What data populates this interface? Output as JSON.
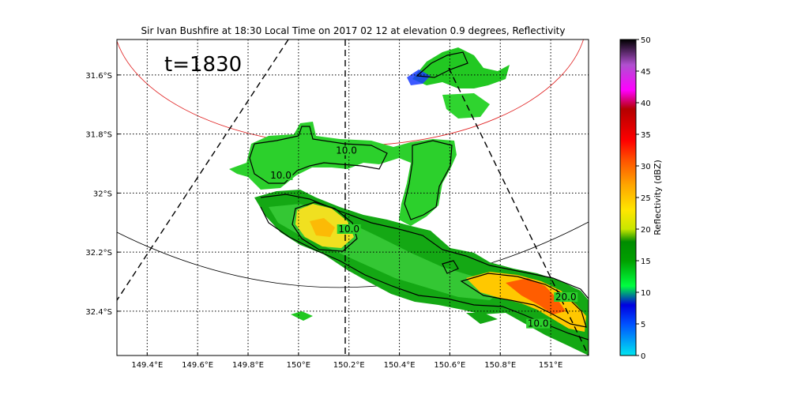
{
  "title": "Sir Ivan Bushfire at 18:30 Local Time on 2017 02 12 at elevation 0.9 degrees, Reflectivity",
  "time_label": "t=1830",
  "map": {
    "lon_range": [
      149.28,
      151.15
    ],
    "lat_range": [
      -32.55,
      -31.48
    ],
    "lon_ticks": [
      {
        "value": 149.4,
        "label": "149.4°E"
      },
      {
        "value": 149.6,
        "label": "149.6°E"
      },
      {
        "value": 149.8,
        "label": "149.8°E"
      },
      {
        "value": 150.0,
        "label": "150°E"
      },
      {
        "value": 150.2,
        "label": "150.2°E"
      },
      {
        "value": 150.4,
        "label": "150.4°E"
      },
      {
        "value": 150.6,
        "label": "150.6°E"
      },
      {
        "value": 150.8,
        "label": "150.8°E"
      },
      {
        "value": 151.0,
        "label": "151°E"
      }
    ],
    "lat_ticks": [
      {
        "value": -31.6,
        "label": "31.6°S"
      },
      {
        "value": -31.8,
        "label": "31.8°S"
      },
      {
        "value": -32.0,
        "label": "32°S"
      },
      {
        "value": -32.2,
        "label": "32.2°S"
      },
      {
        "value": -32.4,
        "label": "32.4°S"
      }
    ],
    "grid": true,
    "contour_labels": [
      {
        "text": "10.0",
        "lon": 150.19,
        "lat": -31.864
      },
      {
        "text": "10.0",
        "lon": 149.93,
        "lat": -31.948
      },
      {
        "text": "10.0",
        "lon": 150.95,
        "lat": -32.45
      },
      {
        "text": "10.0",
        "lon": 150.2,
        "lat": -32.13
      },
      {
        "text": "20.0",
        "lon": 151.06,
        "lat": -32.36
      }
    ]
  },
  "colorbar": {
    "label": "Reflectivity (dBZ)",
    "min": 0,
    "max": 50,
    "ticks": [
      {
        "value": 0,
        "label": "0"
      },
      {
        "value": 5,
        "label": "5"
      },
      {
        "value": 10,
        "label": "10"
      },
      {
        "value": 15,
        "label": "15"
      },
      {
        "value": 20,
        "label": "20"
      },
      {
        "value": 25,
        "label": "25"
      },
      {
        "value": 30,
        "label": "30"
      },
      {
        "value": 35,
        "label": "35"
      },
      {
        "value": 40,
        "label": "40"
      },
      {
        "value": 45,
        "label": "45"
      },
      {
        "value": 50,
        "label": "50"
      }
    ],
    "stops": [
      {
        "value": 0,
        "color": "#00e5f0"
      },
      {
        "value": 5,
        "color": "#0050ff"
      },
      {
        "value": 8,
        "color": "#0000e0"
      },
      {
        "value": 11,
        "color": "#00ff40"
      },
      {
        "value": 15,
        "color": "#00a000"
      },
      {
        "value": 18,
        "color": "#008c00"
      },
      {
        "value": 20,
        "color": "#c8e600"
      },
      {
        "value": 23,
        "color": "#ffe600"
      },
      {
        "value": 27,
        "color": "#ffa500"
      },
      {
        "value": 31,
        "color": "#ff5000"
      },
      {
        "value": 34,
        "color": "#ff0000"
      },
      {
        "value": 39,
        "color": "#b40000"
      },
      {
        "value": 42,
        "color": "#ff00ff"
      },
      {
        "value": 46,
        "color": "#b050d0"
      },
      {
        "value": 50,
        "color": "#000000"
      }
    ]
  }
}
